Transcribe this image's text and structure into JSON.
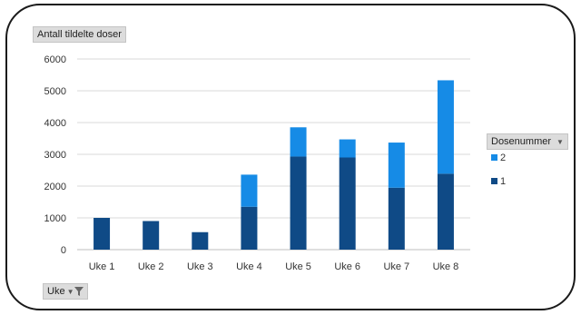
{
  "chart_data": {
    "type": "bar",
    "stacked": true,
    "ylabel": "Antall tildelte doser",
    "xlabel": "Uke",
    "legend_title": "Dosenummer",
    "legend_position": "right",
    "grid": true,
    "ylim": [
      0,
      6000
    ],
    "yticks": [
      0,
      1000,
      2000,
      3000,
      4000,
      5000,
      6000
    ],
    "categories": [
      "Uke 1",
      "Uke 2",
      "Uke 3",
      "Uke 4",
      "Uke 5",
      "Uke 6",
      "Uke 7",
      "Uke 8"
    ],
    "series": [
      {
        "name": "1",
        "color": "#0f4a86",
        "values": [
          1000,
          900,
          550,
          1350,
          2930,
          2900,
          1950,
          2390
        ]
      },
      {
        "name": "2",
        "color": "#168be6",
        "values": [
          0,
          0,
          0,
          1010,
          920,
          570,
          1420,
          2940
        ]
      }
    ]
  },
  "ui": {
    "legend_arrow": "▼",
    "axis_arrow": "▼"
  }
}
